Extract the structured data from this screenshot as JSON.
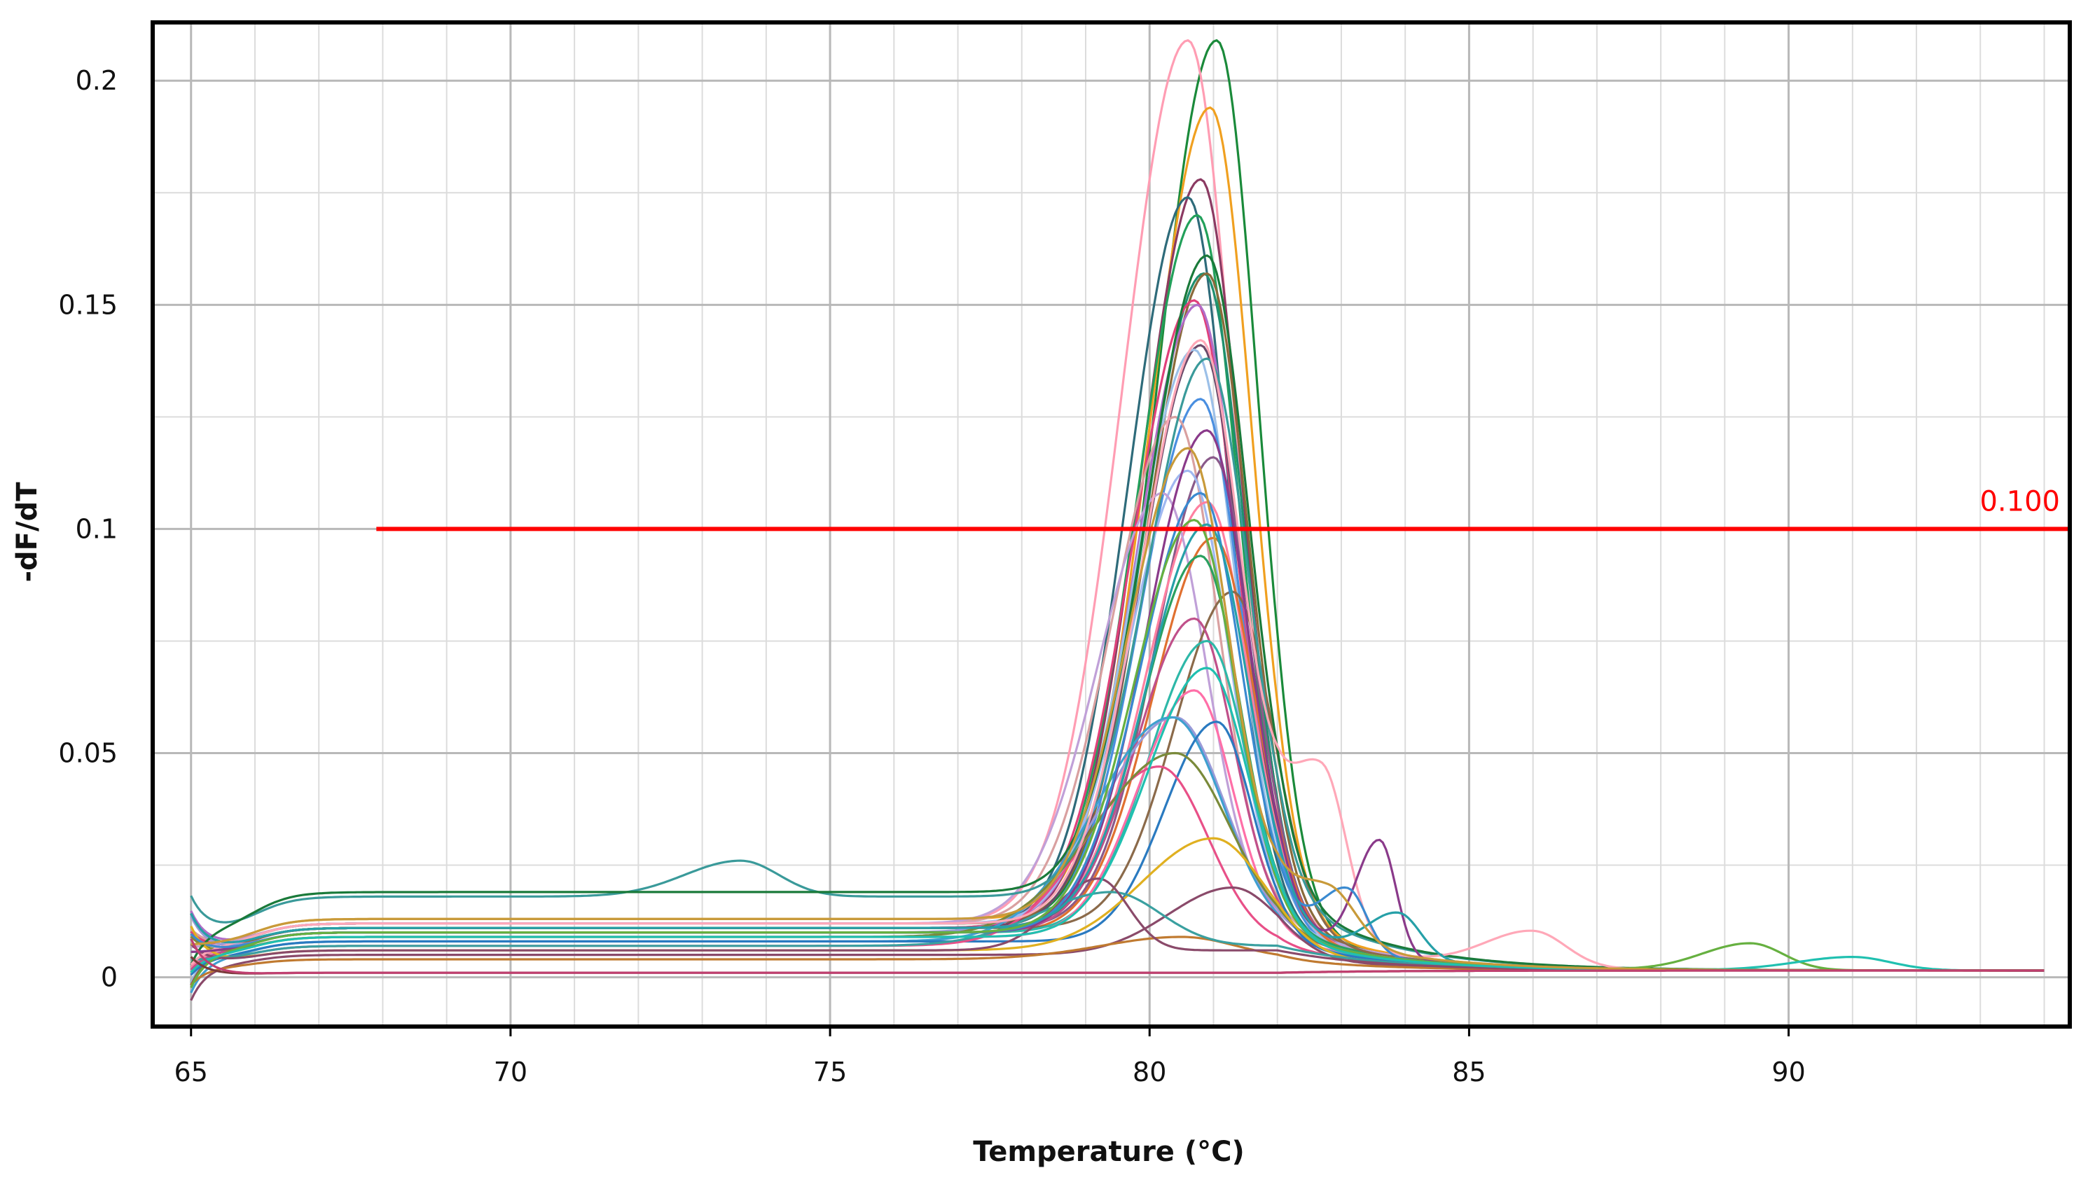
{
  "chart_data": {
    "type": "line",
    "title": "",
    "xlabel": "Temperature (°C)",
    "ylabel": "-dF/dT",
    "xlim": [
      64.4,
      94.4
    ],
    "ylim": [
      -0.011,
      0.213
    ],
    "x_ticks": [
      65,
      70,
      75,
      80,
      85,
      90
    ],
    "y_ticks": [
      0,
      0.05,
      0.1,
      0.15,
      0.2
    ],
    "x_tick_labels": [
      "65",
      "70",
      "75",
      "80",
      "85",
      "90"
    ],
    "y_tick_labels": [
      "0",
      "0.05",
      "0.1",
      "0.15",
      "0.2"
    ],
    "grid": true,
    "legend": "none",
    "threshold": {
      "value": 0.1,
      "label": "0.100",
      "x_start": 67.9,
      "color": "#ff0000"
    },
    "x_range": [
      65,
      94
    ],
    "series": [
      {
        "color": "#1a8a3a",
        "baseline": 0.012,
        "peaks": [
          [
            81.05,
            0.197,
            0.75
          ]
        ]
      },
      {
        "color": "#ff9db3",
        "baseline": 0.012,
        "peaks": [
          [
            80.6,
            0.197,
            0.82
          ]
        ]
      },
      {
        "color": "#f0a020",
        "baseline": 0.013,
        "peaks": [
          [
            80.95,
            0.181,
            0.76
          ]
        ]
      },
      {
        "color": "#8b3a62",
        "baseline": 0.011,
        "peaks": [
          [
            80.8,
            0.167,
            0.75
          ]
        ]
      },
      {
        "color": "#2e6b7a",
        "baseline": 0.011,
        "peaks": [
          [
            80.6,
            0.163,
            0.75
          ]
        ]
      },
      {
        "color": "#22a05a",
        "baseline": 0.012,
        "peaks": [
          [
            80.75,
            0.158,
            0.75
          ]
        ]
      },
      {
        "color": "#1f8f6f",
        "baseline": 0.011,
        "peaks": [
          [
            80.85,
            0.146,
            0.75
          ]
        ]
      },
      {
        "color": "#8a6a3a",
        "baseline": 0.012,
        "peaks": [
          [
            80.9,
            0.145,
            0.75
          ]
        ]
      },
      {
        "color": "#e0407a",
        "baseline": 0.011,
        "peaks": [
          [
            80.7,
            0.14,
            0.78
          ]
        ]
      },
      {
        "color": "#b06cc8",
        "baseline": 0.012,
        "peaks": [
          [
            80.75,
            0.138,
            0.75
          ]
        ]
      },
      {
        "color": "#6b4a6a",
        "baseline": 0.011,
        "peaks": [
          [
            80.8,
            0.13,
            0.75
          ]
        ]
      },
      {
        "color": "#9cc0e8",
        "baseline": 0.012,
        "peaks": [
          [
            80.7,
            0.128,
            0.75
          ]
        ]
      },
      {
        "color": "#4a8fe0",
        "baseline": 0.01,
        "peaks": [
          [
            80.8,
            0.119,
            0.75
          ]
        ]
      },
      {
        "color": "#d9a0a0",
        "baseline": 0.012,
        "peaks": [
          [
            80.4,
            0.113,
            0.78
          ]
        ]
      },
      {
        "color": "#8a5a8a",
        "baseline": 0.011,
        "peaks": [
          [
            81.0,
            0.105,
            0.72
          ]
        ]
      },
      {
        "color": "#a0b8f0",
        "baseline": 0.012,
        "peaks": [
          [
            80.6,
            0.101,
            0.75
          ]
        ]
      },
      {
        "color": "#ff80a0",
        "baseline": 0.011,
        "peaks": [
          [
            80.9,
            0.095,
            0.75
          ]
        ]
      },
      {
        "color": "#c0a0d8",
        "baseline": 0.012,
        "peaks": [
          [
            80.2,
            0.096,
            0.8
          ]
        ]
      },
      {
        "color": "#e07030",
        "baseline": 0.01,
        "peaks": [
          [
            81.0,
            0.088,
            0.75
          ]
        ]
      },
      {
        "color": "#2aa060",
        "baseline": 0.011,
        "peaks": [
          [
            80.8,
            0.083,
            0.72
          ]
        ]
      },
      {
        "color": "#8b6a4a",
        "baseline": 0.011,
        "peaks": [
          [
            81.3,
            0.075,
            0.72
          ]
        ]
      },
      {
        "color": "#c0508a",
        "baseline": 0.01,
        "peaks": [
          [
            80.7,
            0.07,
            0.72
          ]
        ]
      },
      {
        "color": "#2eb8a8",
        "baseline": 0.01,
        "peaks": [
          [
            80.9,
            0.065,
            0.72
          ]
        ]
      },
      {
        "color": "#ff6fa8",
        "baseline": 0.009,
        "peaks": [
          [
            80.7,
            0.055,
            0.7
          ]
        ]
      },
      {
        "color": "#9a9ad8",
        "baseline": 0.01,
        "peaks": [
          [
            80.4,
            0.048,
            0.9
          ]
        ]
      },
      {
        "color": "#3fa0d0",
        "baseline": 0.008,
        "peaks": [
          [
            80.35,
            0.05,
            0.95
          ]
        ]
      },
      {
        "color": "#2a7ac0",
        "baseline": 0.008,
        "peaks": [
          [
            81.05,
            0.049,
            0.65
          ]
        ]
      },
      {
        "color": "#e85088",
        "baseline": 0.007,
        "peaks": [
          [
            80.15,
            0.04,
            0.9
          ]
        ]
      },
      {
        "color": "#7a8a3a",
        "baseline": 0.009,
        "peaks": [
          [
            80.4,
            0.041,
            1.0
          ]
        ]
      },
      {
        "color": "#e0b020",
        "baseline": 0.006,
        "peaks": [
          [
            81.0,
            0.025,
            0.9
          ]
        ]
      },
      {
        "color": "#8a4a6a",
        "baseline": 0.005,
        "peaks": [
          [
            81.3,
            0.015,
            0.8
          ]
        ]
      },
      {
        "color": "#c07a30",
        "baseline": 0.004,
        "peaks": [
          [
            80.5,
            0.005,
            1.0
          ]
        ]
      },
      {
        "color": "#3aa0a0",
        "baseline": 0.007,
        "peaks": [
          [
            79.4,
            0.012,
            0.9
          ]
        ]
      },
      {
        "color": "#8a4a6a",
        "baseline": 0.006,
        "peaks": [
          [
            79.2,
            0.016,
            0.55
          ]
        ]
      },
      {
        "color": "#3a9a9a",
        "baseline": 0.018,
        "peaks": [
          [
            73.6,
            0.008,
            0.7
          ],
          [
            80.9,
            0.12,
            0.75
          ]
        ]
      },
      {
        "color": "#1a7a3a",
        "baseline": 0.019,
        "peaks": [
          [
            80.9,
            0.142,
            0.75
          ]
        ]
      },
      {
        "color": "#ffa8b8",
        "baseline": 0.012,
        "peaks": [
          [
            80.8,
            0.13,
            0.75
          ],
          [
            82.7,
            0.038,
            0.45
          ],
          [
            86.0,
            0.008,
            0.6
          ]
        ]
      },
      {
        "color": "#8a3a8a",
        "baseline": 0.01,
        "peaks": [
          [
            80.9,
            0.112,
            0.75
          ],
          [
            83.6,
            0.026,
            0.3
          ]
        ]
      },
      {
        "color": "#3a8ad0",
        "baseline": 0.01,
        "peaks": [
          [
            80.8,
            0.098,
            0.75
          ],
          [
            83.1,
            0.014,
            0.35
          ]
        ]
      },
      {
        "color": "#26a0a8",
        "baseline": 0.011,
        "peaks": [
          [
            80.9,
            0.09,
            0.75
          ],
          [
            83.9,
            0.01,
            0.4
          ]
        ]
      },
      {
        "color": "#66b040",
        "baseline": 0.01,
        "peaks": [
          [
            80.7,
            0.092,
            0.75
          ],
          [
            89.4,
            0.006,
            0.6
          ]
        ]
      },
      {
        "color": "#20c0b0",
        "baseline": 0.009,
        "peaks": [
          [
            80.9,
            0.06,
            0.75
          ],
          [
            91.0,
            0.003,
            0.7
          ]
        ]
      },
      {
        "color": "#c89a3a",
        "baseline": 0.013,
        "peaks": [
          [
            80.6,
            0.105,
            0.75
          ],
          [
            82.8,
            0.012,
            0.5
          ]
        ]
      },
      {
        "color": "#7a3a3a",
        "baseline": 0.001,
        "peaks": []
      },
      {
        "color": "#c04070",
        "baseline": 0.001,
        "peaks": []
      }
    ]
  }
}
